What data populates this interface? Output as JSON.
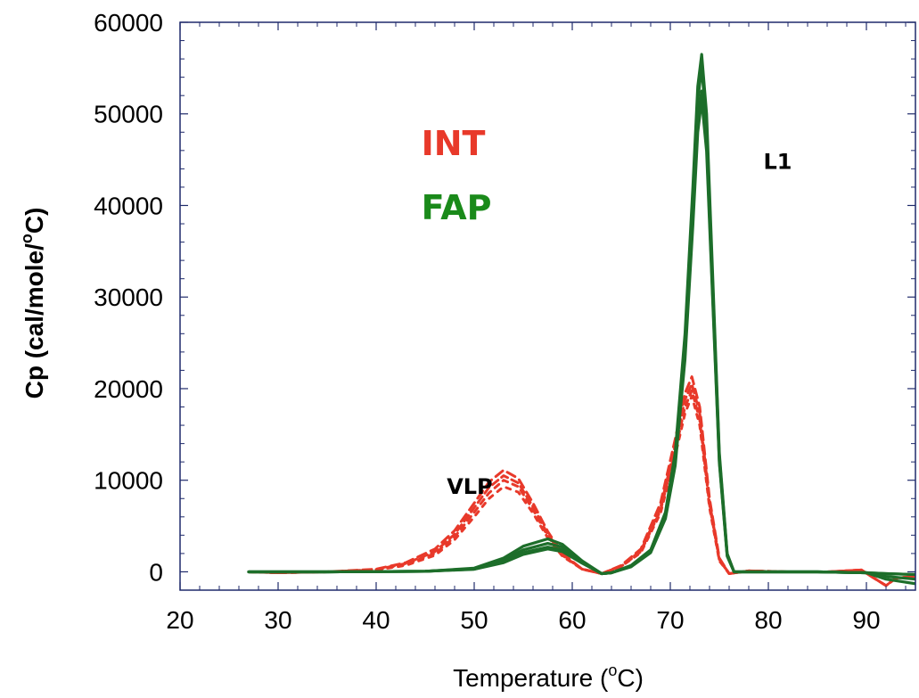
{
  "chart_data": {
    "type": "line",
    "xlabel": "Temperature (",
    "xlabel_sup": "o",
    "xlabel_end": "C)",
    "ylabel": "Cp (cal/mole/",
    "ylabel_sup": "o",
    "ylabel_end": "C)",
    "xlim": [
      20,
      95
    ],
    "ylim": [
      -2000,
      60000
    ],
    "xticks": [
      20,
      30,
      40,
      50,
      60,
      70,
      80,
      90
    ],
    "yticks": [
      0,
      10000,
      20000,
      30000,
      40000,
      50000,
      60000
    ],
    "grid": false,
    "annotations": [
      {
        "text": "INT",
        "x": 44.6,
        "y": 45500,
        "color": "#e8392a",
        "size": 38
      },
      {
        "text": "FAP",
        "x": 44.6,
        "y": 38500,
        "color": "#1a8a1a",
        "size": 38
      },
      {
        "text": "L1",
        "x": 79.5,
        "y": 44000,
        "color": "#000000",
        "size": 24
      },
      {
        "text": "VLP",
        "x": 47.2,
        "y": 8500,
        "color": "#000000",
        "size": 24
      }
    ],
    "series": [
      {
        "group": "INT",
        "color": "#e8392a",
        "dash": "10,6",
        "x": [
          27,
          30,
          35,
          40,
          43,
          46,
          48,
          50,
          51.5,
          53,
          54.5,
          56,
          57.5,
          59,
          61,
          63,
          65,
          67,
          69,
          70.5,
          71.5,
          72.2,
          73,
          74,
          75,
          76,
          78,
          82,
          86,
          89.5,
          90.5,
          92,
          93,
          95
        ],
        "y": [
          0,
          -100,
          0,
          300,
          1000,
          2500,
          4500,
          7500,
          9800,
          11100,
          10200,
          7500,
          4400,
          2000,
          300,
          -200,
          700,
          2500,
          7500,
          14500,
          19500,
          21300,
          18000,
          8000,
          1500,
          -200,
          100,
          0,
          0,
          200,
          -500,
          -1500,
          -700,
          -500
        ]
      },
      {
        "group": "INT",
        "color": "#e8392a",
        "dash": "8,5",
        "x": [
          27,
          30,
          35,
          40,
          43,
          46,
          48,
          50,
          51.5,
          53,
          54.5,
          56,
          57.5,
          59,
          61,
          63,
          65,
          67,
          69,
          70.5,
          71.5,
          72.2,
          73,
          74,
          75,
          76,
          78,
          82,
          86,
          89.5,
          90.5,
          92,
          93,
          95
        ],
        "y": [
          0,
          -100,
          0,
          250,
          900,
          2200,
          4100,
          7000,
          9200,
          10500,
          9700,
          7100,
          4100,
          1900,
          300,
          -200,
          650,
          2300,
          7000,
          13800,
          18800,
          20500,
          17300,
          7600,
          1400,
          -200,
          100,
          0,
          0,
          200,
          -500,
          -1500,
          -700,
          -500
        ]
      },
      {
        "group": "INT",
        "color": "#e8392a",
        "dash": "6,6",
        "x": [
          27,
          30,
          35,
          40,
          43,
          46,
          48,
          50,
          51.5,
          53,
          54.5,
          56,
          57.5,
          59,
          61,
          63,
          65,
          67,
          69,
          70.5,
          71.5,
          72.2,
          73,
          74,
          75,
          76,
          78,
          82,
          86,
          89.5,
          90.5,
          92,
          93,
          95
        ],
        "y": [
          0,
          -100,
          0,
          200,
          800,
          2000,
          3800,
          6500,
          8600,
          10000,
          9300,
          6800,
          3900,
          1800,
          300,
          -200,
          600,
          2200,
          6700,
          13200,
          18000,
          19800,
          16600,
          7300,
          1300,
          -200,
          100,
          0,
          0,
          200,
          -500,
          -1500,
          -700,
          -500
        ]
      },
      {
        "group": "INT",
        "color": "#e8392a",
        "dash": "5,7",
        "x": [
          27,
          30,
          35,
          40,
          43,
          46,
          48,
          50,
          51.5,
          53,
          54.5,
          56,
          57.5,
          59,
          61,
          63,
          65,
          67,
          69,
          70.5,
          71.5,
          72.2,
          73,
          74,
          75,
          76,
          78,
          82,
          86,
          89.5,
          90.5,
          92,
          93,
          95
        ],
        "y": [
          0,
          -100,
          0,
          200,
          700,
          1800,
          3500,
          6000,
          8000,
          9300,
          8700,
          6400,
          3700,
          1700,
          300,
          -200,
          600,
          2100,
          6400,
          12700,
          17300,
          19200,
          16000,
          7000,
          1200,
          -200,
          100,
          0,
          0,
          200,
          -500,
          -1500,
          -700,
          -500
        ]
      },
      {
        "group": "FAP",
        "color": "#1d6e2a",
        "dash": "",
        "x": [
          27,
          35,
          45,
          50,
          53,
          55,
          57.5,
          59,
          61,
          63,
          64,
          66,
          68,
          69.5,
          70.5,
          71.5,
          72.3,
          72.8,
          73.2,
          73.7,
          74.3,
          75,
          75.8,
          76.5,
          80,
          85,
          90,
          92,
          95
        ],
        "y": [
          0,
          0,
          50,
          400,
          1500,
          2800,
          3600,
          3000,
          1200,
          -200,
          -100,
          700,
          2400,
          6500,
          13000,
          26000,
          42000,
          53000,
          56500,
          50000,
          33000,
          13000,
          2000,
          0,
          0,
          0,
          -100,
          -800,
          -1300
        ]
      },
      {
        "group": "FAP",
        "color": "#1d6e2a",
        "dash": "",
        "x": [
          27,
          35,
          45,
          50,
          53,
          55,
          57.5,
          59,
          61,
          63,
          64,
          66,
          68,
          69.5,
          70.5,
          71.5,
          72.3,
          72.8,
          73.2,
          73.7,
          74.3,
          75,
          75.8,
          76.5,
          80,
          85,
          90,
          92,
          95
        ],
        "y": [
          0,
          0,
          50,
          350,
          1300,
          2400,
          3100,
          2700,
          1100,
          -200,
          -100,
          650,
          2300,
          6200,
          12500,
          25000,
          40500,
          51500,
          55000,
          48800,
          32000,
          12600,
          1900,
          0,
          0,
          0,
          -100,
          -500,
          -800
        ]
      },
      {
        "group": "FAP",
        "color": "#1d6e2a",
        "dash": "",
        "x": [
          27,
          35,
          45,
          50,
          53,
          55,
          57.5,
          59,
          61,
          63,
          64,
          66,
          68,
          69.5,
          70.5,
          71.5,
          72.3,
          72.8,
          73.2,
          73.7,
          74.3,
          75,
          75.8,
          76.5,
          80,
          85,
          90,
          92,
          95
        ],
        "y": [
          0,
          0,
          50,
          300,
          1100,
          2100,
          2700,
          2400,
          1000,
          -200,
          -100,
          600,
          2200,
          6000,
          12000,
          24000,
          39000,
          49500,
          52500,
          46800,
          30800,
          12100,
          1800,
          0,
          0,
          0,
          -100,
          -200,
          -300
        ]
      },
      {
        "group": "FAP",
        "color": "#1d6e2a",
        "dash": "",
        "x": [
          27,
          35,
          45,
          50,
          53,
          55,
          57.5,
          59,
          61,
          63,
          64,
          66,
          68,
          69.5,
          70.5,
          71.5,
          72.3,
          72.8,
          73.2,
          73.7,
          74.3,
          75,
          75.8,
          76.5,
          80,
          85,
          90,
          92,
          95
        ],
        "y": [
          0,
          0,
          50,
          280,
          1000,
          1900,
          2500,
          2200,
          950,
          -200,
          -100,
          550,
          2100,
          5800,
          11600,
          23200,
          37800,
          48000,
          51500,
          45900,
          30200,
          11900,
          1700,
          0,
          0,
          0,
          -100,
          -200,
          -300
        ]
      }
    ]
  }
}
